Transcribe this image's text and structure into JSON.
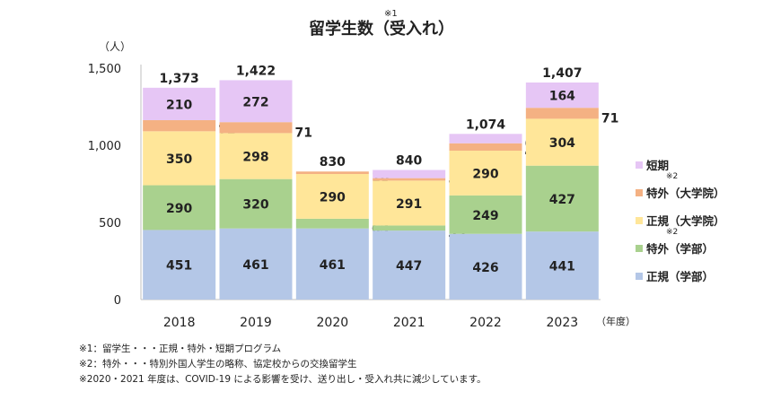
{
  "chart_data": {
    "type": "bar",
    "stacked": true,
    "title": "留学生数（受入れ）",
    "title_note": "※1",
    "ylabel": "（人）",
    "xlabel": "（年度）",
    "ylim": [
      0,
      1500
    ],
    "yticks": [
      "0",
      "500",
      "1,000",
      "1,500"
    ],
    "ytick_values": [
      0,
      500,
      1000,
      1500
    ],
    "categories": [
      "2018",
      "2019",
      "2020",
      "2021",
      "2022",
      "2023"
    ],
    "totals": [
      "1,373",
      "1,422",
      "830",
      "840",
      "1,074",
      "1,407"
    ],
    "series": [
      {
        "name": "正規（学部）",
        "color": "#b4c7e7",
        "values": [
          451,
          461,
          461,
          447,
          426,
          441
        ]
      },
      {
        "name": "特外（学部）",
        "note": "※2",
        "color": "#a9d18e",
        "values": [
          290,
          320,
          63,
          33,
          249,
          427
        ]
      },
      {
        "name": "正規（大学院）",
        "color": "#ffe699",
        "values": [
          350,
          298,
          290,
          291,
          290,
          304
        ]
      },
      {
        "name": "特外（大学院）",
        "note": "※2",
        "color": "#f4b183",
        "values": [
          72,
          71,
          16,
          16,
          48,
          71
        ]
      },
      {
        "name": "短期",
        "color": "#e6c6f5",
        "values": [
          210,
          272,
          0,
          53,
          61,
          164
        ]
      }
    ],
    "legend_position": "right",
    "grid": false
  },
  "notes": [
    "※1：留学生・・・正規・特外・短期プログラム",
    "※2：特外・・・特別外国人学生の略称、協定校からの交換留学生",
    "※2020・2021 年度は、COVID-19 による影響を受け、送り出し・受入れ共に減少しています。"
  ]
}
